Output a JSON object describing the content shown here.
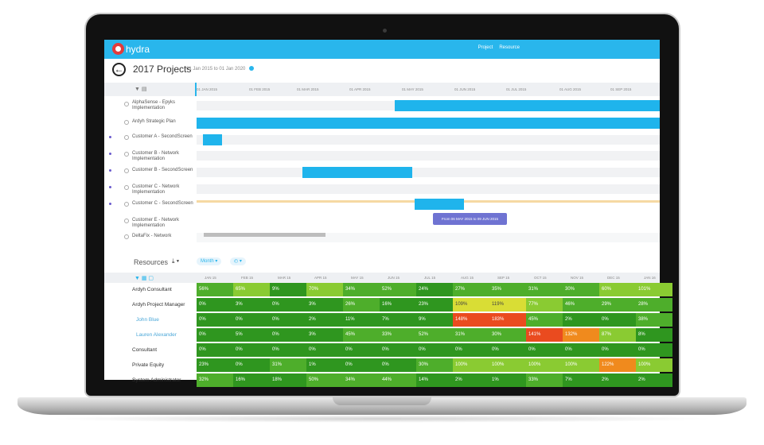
{
  "topbar": {
    "brand": "hydra",
    "nav": [
      "Project",
      "Resource"
    ]
  },
  "title": {
    "name": "2017 Projects",
    "dates": "01 Jan 2015 to 01 Jan 2020"
  },
  "timeline": {
    "months": [
      "01 JAN 2015",
      "01 FEB 2015",
      "01 MAR 2015",
      "01 APR 2015",
      "01 MAY 2015",
      "01 JUN 2015",
      "01 JUL 2015",
      "01 AUG 2015",
      "01 SEP 2015"
    ],
    "projects": [
      {
        "name": "AlphaSense - Epyks Implementation"
      },
      {
        "name": "Ardyh Strategic Plan"
      },
      {
        "name": "Customer A - SecondScreen"
      },
      {
        "name": "Customer B - Network Implementation"
      },
      {
        "name": "Customer B - SecondScreen"
      },
      {
        "name": "Customer C - Network Implementation"
      },
      {
        "name": "Customer C - SecondScreen"
      },
      {
        "name": "Customer E - Network Implementation"
      },
      {
        "name": "DeltaFix - Network"
      }
    ],
    "tooltip": "From 06 MAY 2015 to 09 JUN 2015"
  },
  "resources": {
    "title": "Resources",
    "view_label": "Month ▾",
    "months": [
      "JAN 15",
      "FEB 15",
      "MAR 15",
      "APR 15",
      "MAY 15",
      "JUN 15",
      "JUL 15",
      "AUG 15",
      "SEP 15",
      "OCT 15",
      "NOV 15",
      "DEC 15",
      "JAN 16"
    ],
    "rows": [
      {
        "name": "Ardyh Consultant",
        "values": [
          "56%",
          "65%",
          "9%",
          "70%",
          "34%",
          "52%",
          "24%",
          "27%",
          "35%",
          "31%",
          "30%",
          "60%",
          "101%"
        ]
      },
      {
        "name": "Ardyh Project Manager",
        "values": [
          "0%",
          "3%",
          "0%",
          "3%",
          "26%",
          "16%",
          "23%",
          "109%",
          "119%",
          "77%",
          "46%",
          "29%",
          "28%"
        ]
      },
      {
        "name": "John Blue",
        "values": [
          "0%",
          "0%",
          "0%",
          "2%",
          "11%",
          "7%",
          "9%",
          "148%",
          "183%",
          "45%",
          "2%",
          "0%",
          "38%"
        ]
      },
      {
        "name": "Lauren Alexander",
        "values": [
          "0%",
          "5%",
          "0%",
          "3%",
          "45%",
          "33%",
          "52%",
          "31%",
          "30%",
          "141%",
          "132%",
          "87%",
          "8%"
        ]
      },
      {
        "name": "Consultant",
        "values": [
          "0%",
          "0%",
          "0%",
          "0%",
          "0%",
          "0%",
          "0%",
          "0%",
          "0%",
          "0%",
          "0%",
          "0%",
          "0%"
        ]
      },
      {
        "name": "Private Equity",
        "values": [
          "23%",
          "0%",
          "31%",
          "1%",
          "0%",
          "0%",
          "30%",
          "100%",
          "100%",
          "100%",
          "100%",
          "122%",
          "100%"
        ]
      },
      {
        "name": "System Administrator",
        "values": [
          "32%",
          "16%",
          "18%",
          "50%",
          "34%",
          "44%",
          "14%",
          "2%",
          "1%",
          "33%",
          "7%",
          "2%",
          "2%"
        ]
      }
    ]
  }
}
